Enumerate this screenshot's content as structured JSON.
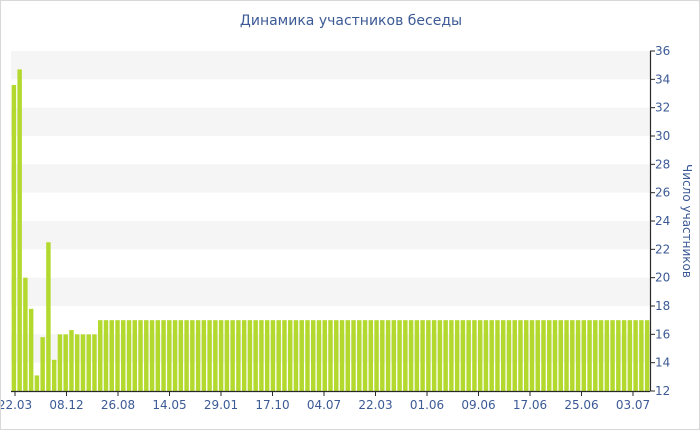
{
  "chart_data": {
    "type": "bar",
    "title": "Динамика участников беседы",
    "xlabel": "",
    "ylabel": "Число участников",
    "ylim": [
      12,
      36
    ],
    "y_ticks": [
      12,
      14,
      16,
      18,
      20,
      22,
      24,
      26,
      28,
      30,
      32,
      34,
      36
    ],
    "x_tick_labels": [
      "22.03",
      "08.12",
      "26.08",
      "14.05",
      "29.01",
      "17.10",
      "04.07",
      "22.03",
      "01.06",
      "09.06",
      "17.06",
      "25.06",
      "03.07"
    ],
    "bar_color": "#b3d92f",
    "band_color": "#f5f5f5",
    "axis_color": "#2a2a2a",
    "text_color": "#3c5a96",
    "grid": true,
    "values": [
      33.6,
      34.7,
      20,
      17.8,
      13.1,
      15.8,
      22.5,
      14.2,
      16,
      16,
      16.3,
      16,
      16,
      16,
      16,
      17,
      17,
      17,
      17,
      17,
      17,
      17,
      17,
      17,
      17,
      17,
      17,
      17,
      17,
      17,
      17,
      17,
      17,
      17,
      17,
      17,
      17,
      17,
      17,
      17,
      17,
      17,
      17,
      17,
      17,
      17,
      17,
      17,
      17,
      17,
      17,
      17,
      17,
      17,
      17,
      17,
      17,
      17,
      17,
      17,
      17,
      17,
      17,
      17,
      17,
      17,
      17,
      17,
      17,
      17,
      17,
      17,
      17,
      17,
      17,
      17,
      17,
      17,
      17,
      17,
      17,
      17,
      17,
      17,
      17,
      17,
      17,
      17,
      17,
      17,
      17,
      17,
      17,
      17,
      17,
      17,
      17,
      17,
      17,
      17,
      17,
      17,
      17,
      17,
      17,
      17,
      17,
      17,
      17,
      17,
      17
    ]
  }
}
